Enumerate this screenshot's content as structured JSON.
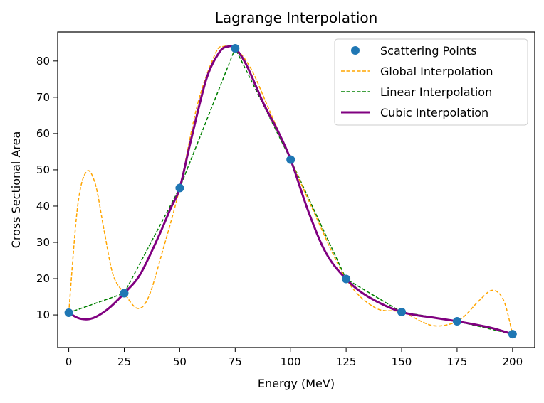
{
  "chart_data": {
    "type": "line",
    "title": "Lagrange Interpolation",
    "xlabel": "Energy (MeV)",
    "ylabel": "Cross Sectional Area",
    "xlim": [
      -5,
      210
    ],
    "ylim": [
      1,
      88
    ],
    "x_ticks": [
      0,
      25,
      50,
      75,
      100,
      125,
      150,
      175,
      200
    ],
    "y_ticks": [
      10,
      20,
      30,
      40,
      50,
      60,
      70,
      80
    ],
    "grid": false,
    "legend_position": "top-right",
    "points": {
      "name": "Scattering Points",
      "color": "#1f77b4",
      "x": [
        0,
        25,
        50,
        75,
        100,
        125,
        150,
        175,
        200
      ],
      "y": [
        10.6,
        16.0,
        45.0,
        83.5,
        52.8,
        19.9,
        10.8,
        8.25,
        4.7
      ]
    },
    "series": [
      {
        "name": "Global Interpolation",
        "color": "#ffa500",
        "style": "dashed",
        "x": [
          0,
          4,
          8,
          12,
          16,
          20,
          25,
          31,
          36,
          42,
          50,
          58,
          66,
          70,
          75,
          82,
          90,
          100,
          110,
          125,
          138,
          150,
          163,
          172,
          178,
          185,
          191,
          196,
          200
        ],
        "y": [
          10.6,
          40,
          49.5,
          46,
          33,
          21,
          16.0,
          11.8,
          15,
          27,
          45.0,
          68,
          82,
          84,
          83.5,
          78,
          67,
          52.8,
          39,
          19.9,
          12,
          10.8,
          7.2,
          7.5,
          9.5,
          14,
          16.8,
          14,
          4.7
        ]
      },
      {
        "name": "Linear Interpolation",
        "color": "#008000",
        "style": "dashed",
        "x": [
          0,
          25,
          50,
          75,
          100,
          125,
          150,
          175,
          200
        ],
        "y": [
          10.6,
          16.0,
          45.0,
          83.5,
          52.8,
          19.9,
          10.8,
          8.25,
          4.7
        ]
      },
      {
        "name": "Cubic Interpolation",
        "color": "#800080",
        "style": "solid",
        "x": [
          0,
          4,
          8,
          12,
          18,
          25,
          32,
          40,
          46,
          50,
          55,
          62,
          68,
          72,
          75,
          80,
          88,
          94,
          100,
          108,
          116,
          125,
          135,
          150,
          165,
          175,
          190,
          200
        ],
        "y": [
          10.6,
          9.2,
          8.8,
          9.4,
          11.8,
          16.0,
          21,
          31,
          39.5,
          45.0,
          58,
          75,
          82.5,
          84,
          83.5,
          79,
          68,
          61,
          52.8,
          38.5,
          27,
          19.9,
          15,
          10.8,
          9.2,
          8.25,
          6.5,
          4.7
        ]
      }
    ]
  }
}
